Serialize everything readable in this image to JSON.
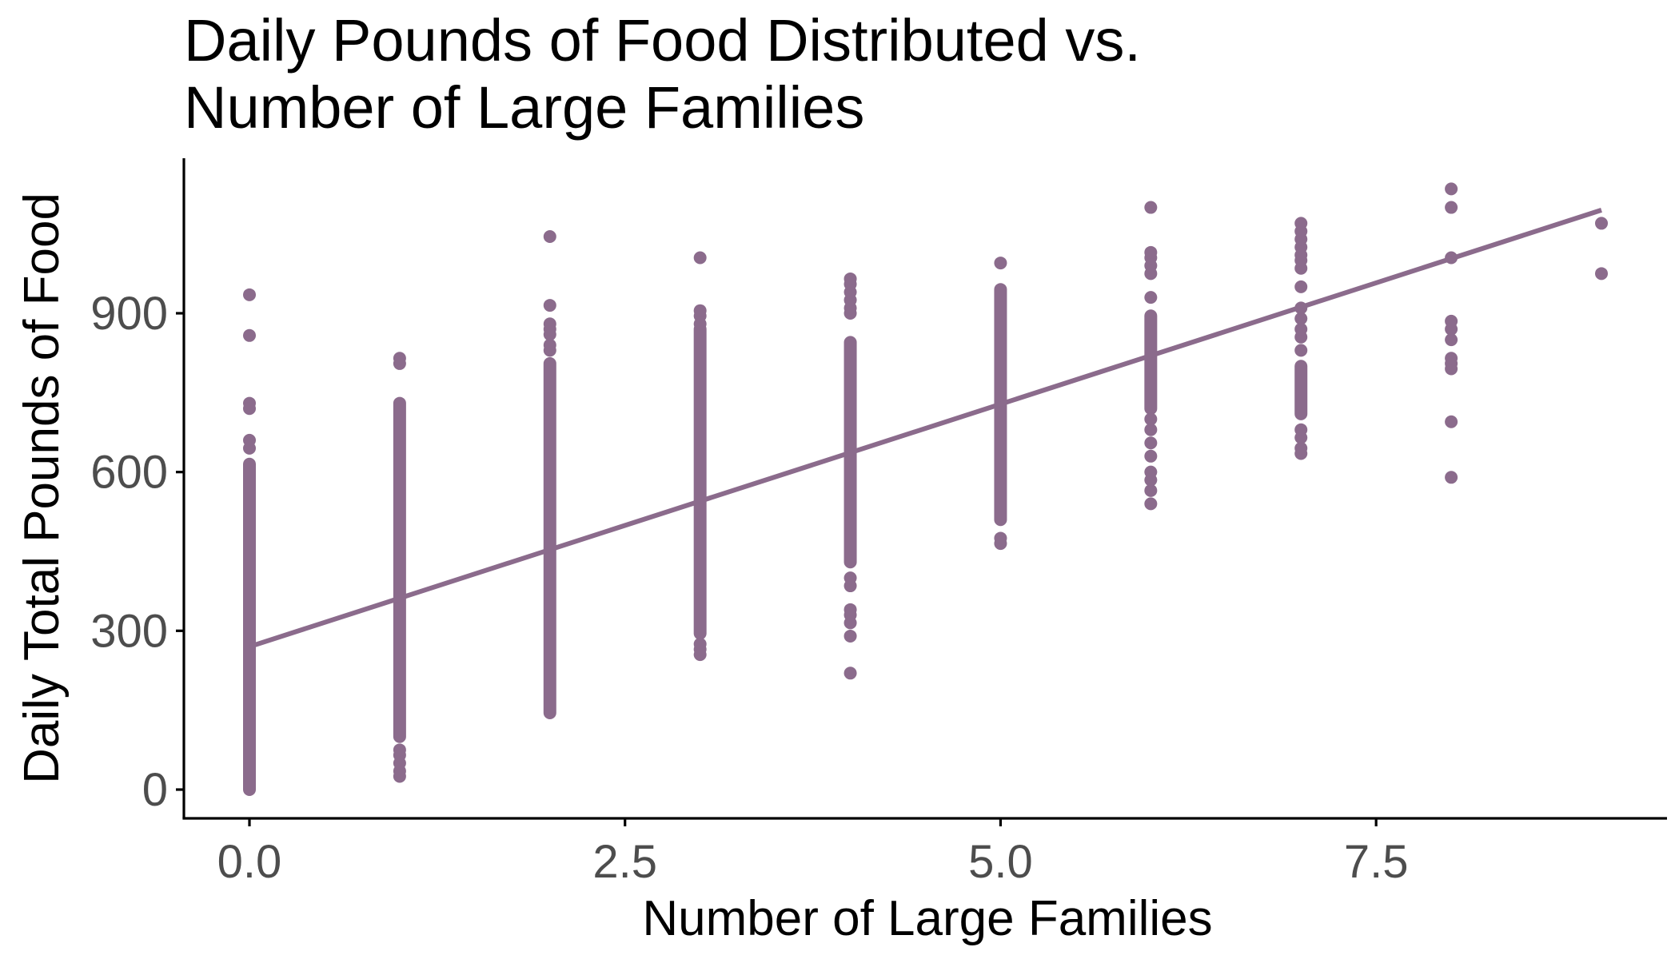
{
  "chart_data": {
    "type": "scatter",
    "title": "Daily Pounds of Food Distributed vs. Number of Large Families",
    "title_lines": [
      "Daily Pounds of Food Distributed vs.",
      "Number of Large Families"
    ],
    "xlabel": "Number of Large Families",
    "ylabel": "Daily Total Pounds of Food",
    "xlim": [
      -0.45,
      9.45
    ],
    "ylim": [
      -55,
      1190
    ],
    "x_ticks": [
      0,
      2.5,
      5,
      7.5
    ],
    "x_tick_labels": [
      "0.0",
      "2.5",
      "5.0",
      "7.5"
    ],
    "y_ticks": [
      0,
      300,
      600,
      900
    ],
    "y_tick_labels": [
      "0",
      "300",
      "600",
      "900"
    ],
    "grid": false,
    "legend": "none",
    "color": "#8b6b8c",
    "series": [
      {
        "x": 0,
        "ranges": [
          [
            0,
            615
          ]
        ],
        "points": [
          660,
          645,
          730,
          720,
          858,
          935
        ]
      },
      {
        "x": 1,
        "ranges": [
          [
            100,
            730
          ]
        ],
        "points": [
          25,
          35,
          50,
          65,
          75,
          805,
          815
        ]
      },
      {
        "x": 2,
        "ranges": [
          [
            145,
            805
          ]
        ],
        "points": [
          830,
          840,
          860,
          870,
          880,
          915,
          1045
        ]
      },
      {
        "x": 3,
        "ranges": [
          [
            295,
            870
          ]
        ],
        "points": [
          255,
          265,
          275,
          880,
          895,
          905,
          1005
        ]
      },
      {
        "x": 4,
        "ranges": [
          [
            430,
            845
          ]
        ],
        "points": [
          220,
          290,
          315,
          330,
          340,
          385,
          400,
          900,
          910,
          925,
          940,
          955,
          965
        ]
      },
      {
        "x": 5,
        "ranges": [
          [
            510,
            945
          ]
        ],
        "points": [
          465,
          475,
          995
        ]
      },
      {
        "x": 6,
        "ranges": [
          [
            720,
            895
          ]
        ],
        "points": [
          540,
          565,
          585,
          600,
          630,
          655,
          680,
          700,
          930,
          975,
          990,
          1005,
          1015,
          1100
        ]
      },
      {
        "x": 7,
        "ranges": [
          [
            710,
            800
          ]
        ],
        "points": [
          635,
          645,
          665,
          680,
          830,
          855,
          870,
          890,
          910,
          950,
          985,
          1000,
          1010,
          1025,
          1040,
          1055,
          1070
        ]
      },
      {
        "x": 8,
        "ranges": [],
        "points": [
          590,
          695,
          795,
          805,
          815,
          850,
          870,
          885,
          1005,
          1100,
          1135
        ]
      },
      {
        "x": 9,
        "ranges": [],
        "points": [
          975,
          1070
        ]
      }
    ],
    "trend_line": {
      "type": "linear",
      "x": [
        0,
        9
      ],
      "y": [
        270,
        1095
      ]
    }
  }
}
